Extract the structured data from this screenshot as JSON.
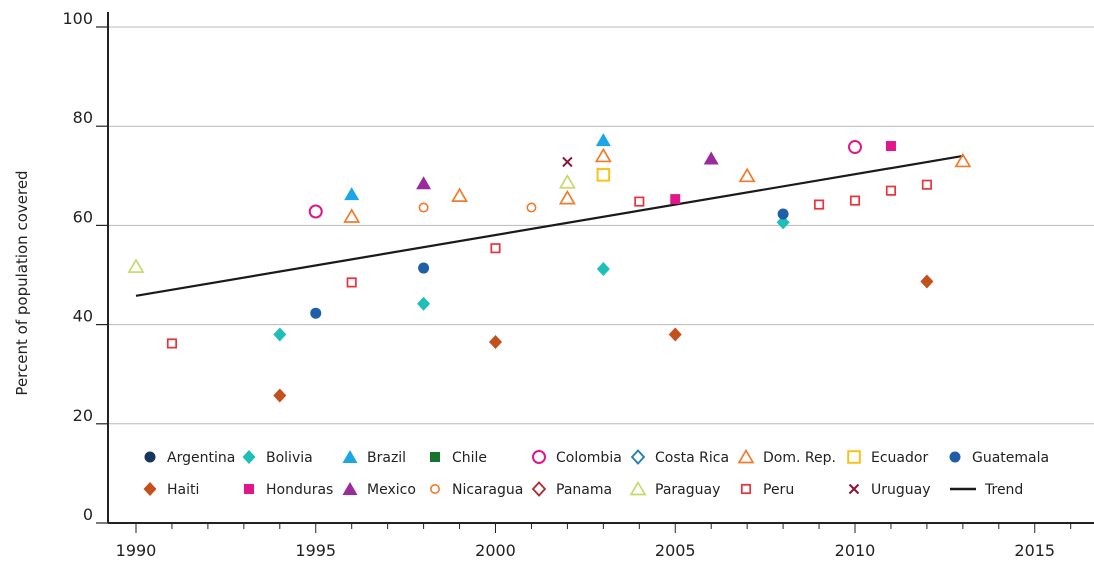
{
  "chart_data": {
    "type": "scatter",
    "title": "",
    "xlabel": "",
    "ylabel": "Percent of population covered",
    "xlim": [
      1989.2,
      2016.5
    ],
    "ylim": [
      0,
      100
    ],
    "xticks": [
      "1990",
      "1995",
      "2000",
      "2005",
      "2010",
      "2015"
    ],
    "yticks": [
      "0",
      "20",
      "40",
      "60",
      "80",
      "100"
    ],
    "grid": "horizontal",
    "legend_position": "bottom",
    "series": [
      {
        "name": "Argentina",
        "marker": "circle",
        "color": "#17365d",
        "points": []
      },
      {
        "name": "Bolivia",
        "marker": "diamond",
        "color": "#1dbfb8",
        "points": [
          [
            1994,
            38
          ],
          [
            1998,
            44.2
          ],
          [
            2003,
            51.2
          ],
          [
            2008,
            60.6
          ]
        ]
      },
      {
        "name": "Brazil",
        "marker": "triangle",
        "color": "#1aa7ea",
        "points": [
          [
            1996,
            66.3
          ],
          [
            2003,
            77.2
          ]
        ]
      },
      {
        "name": "Chile",
        "marker": "square",
        "color": "#18742c",
        "points": []
      },
      {
        "name": "Colombia",
        "marker": "circle-open",
        "color": "#e0168a",
        "points": [
          [
            1995,
            62.8
          ],
          [
            2010,
            75.8
          ]
        ]
      },
      {
        "name": "Costa Rica",
        "marker": "diamond-open",
        "color": "#1c7fb0",
        "points": []
      },
      {
        "name": "Dom. Rep.",
        "marker": "triangle-open",
        "color": "#f07b2a",
        "points": [
          [
            1996,
            61.8
          ],
          [
            1999,
            66
          ],
          [
            2002,
            65.5
          ],
          [
            2003,
            74
          ],
          [
            2007,
            70
          ],
          [
            2013,
            73
          ]
        ]
      },
      {
        "name": "Ecuador",
        "marker": "square-open",
        "color": "#f7c31a",
        "points": [
          [
            2003,
            70.2
          ]
        ]
      },
      {
        "name": "Guatemala",
        "marker": "circle",
        "color": "#1f5fa8",
        "points": [
          [
            1995,
            42.3
          ],
          [
            1998,
            51.4
          ],
          [
            2008,
            62.3
          ]
        ]
      },
      {
        "name": "Haiti",
        "marker": "diamond",
        "color": "#c4501c",
        "points": [
          [
            1994,
            25.7
          ],
          [
            2000,
            36.5
          ],
          [
            2005,
            38
          ],
          [
            2012,
            48.7
          ]
        ]
      },
      {
        "name": "Honduras",
        "marker": "square",
        "color": "#e0168a",
        "points": [
          [
            2005,
            65.3
          ],
          [
            2011,
            76
          ]
        ]
      },
      {
        "name": "Mexico",
        "marker": "triangle",
        "color": "#9b2a9c",
        "points": [
          [
            1998,
            68.5
          ],
          [
            2006,
            73.5
          ]
        ]
      },
      {
        "name": "Nicaragua",
        "marker": "circle-open-small",
        "color": "#f07b2a",
        "points": [
          [
            1998,
            63.6
          ],
          [
            2001,
            63.6
          ]
        ]
      },
      {
        "name": "Panama",
        "marker": "diamond-open",
        "color": "#b32a2e",
        "points": []
      },
      {
        "name": "Paraguay",
        "marker": "triangle-open",
        "color": "#c9d86a",
        "points": [
          [
            1990,
            51.7
          ],
          [
            2002,
            68.7
          ]
        ]
      },
      {
        "name": "Peru",
        "marker": "square-open",
        "color": "#e8333a",
        "points": [
          [
            1991,
            36.2
          ],
          [
            1996,
            48.5
          ],
          [
            2000,
            55.4
          ],
          [
            2004,
            64.8
          ],
          [
            2009,
            64.2
          ],
          [
            2010,
            65
          ],
          [
            2011,
            67
          ],
          [
            2012,
            68.2
          ]
        ]
      },
      {
        "name": "Uruguay",
        "marker": "x",
        "color": "#8a1538",
        "points": [
          [
            2002,
            72.8
          ]
        ]
      }
    ],
    "trend": {
      "name": "Trend",
      "color": "#1a1a1a",
      "from": [
        1990,
        45.8
      ],
      "to": [
        2013,
        74
      ]
    }
  }
}
